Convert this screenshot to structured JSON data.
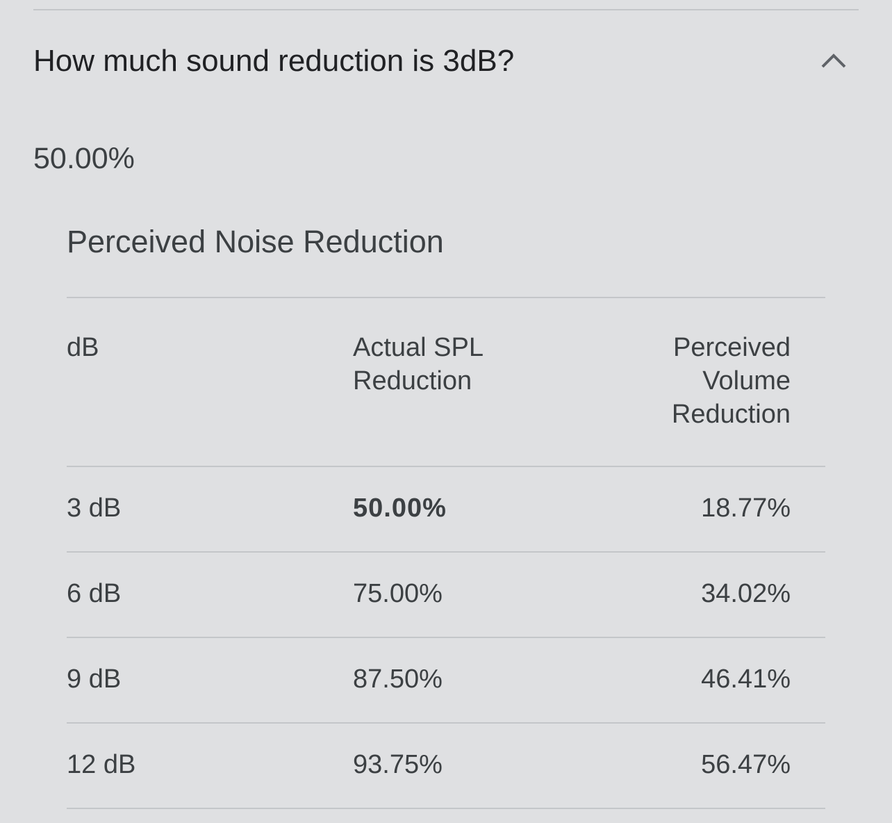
{
  "question": "How much sound reduction is 3dB?",
  "answer": "50.00%",
  "table": {
    "title": "Perceived Noise Reduction",
    "header": [
      "dB",
      "Actual SPL Reduction",
      "Perceived Volume Reduction"
    ],
    "rows": [
      [
        "3 dB",
        "50.00%",
        "18.77%"
      ],
      [
        "6 dB",
        "75.00%",
        "34.02%"
      ],
      [
        "9 dB",
        "87.50%",
        "46.41%"
      ],
      [
        "12 dB",
        "93.75%",
        "56.47%"
      ]
    ]
  }
}
